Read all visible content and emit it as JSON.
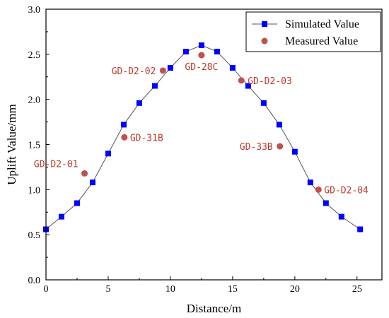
{
  "chart_data": {
    "type": "line",
    "xlabel": "Distance/m",
    "ylabel": "Uplift Value/mm",
    "xlim": [
      0,
      27
    ],
    "ylim": [
      0,
      3.0
    ],
    "x_ticks": [
      "0",
      "5",
      "10",
      "15",
      "20",
      "25"
    ],
    "y_ticks": [
      "0.0",
      "0.5",
      "1.0",
      "1.5",
      "2.0",
      "2.5",
      "3.0"
    ],
    "grid": false,
    "legend_position": "top-right",
    "series": [
      {
        "name": "Simulated Value",
        "style": "line-with-square-markers",
        "color": "#0000ff",
        "line_color": "#555555",
        "x": [
          0,
          1.25,
          2.5,
          3.75,
          5,
          6.25,
          7.5,
          8.75,
          10,
          11.25,
          12.5,
          13.75,
          15,
          16.25,
          17.5,
          18.75,
          20,
          21.25,
          22.5,
          23.75,
          25.25
        ],
        "y": [
          0.56,
          0.7,
          0.85,
          1.08,
          1.4,
          1.72,
          1.96,
          2.15,
          2.35,
          2.53,
          2.6,
          2.53,
          2.35,
          2.15,
          1.96,
          1.72,
          1.42,
          1.08,
          0.85,
          0.7,
          0.56
        ]
      },
      {
        "name": "Measured Value",
        "style": "circle-markers",
        "color": "#c0504d",
        "points": [
          {
            "label": "GD-D2-01",
            "x": 3.1,
            "y": 1.18
          },
          {
            "label": "GD-31B",
            "x": 6.3,
            "y": 1.58
          },
          {
            "label": "GD-D2-02",
            "x": 9.4,
            "y": 2.32
          },
          {
            "label": "GD-28C",
            "x": 12.5,
            "y": 2.49
          },
          {
            "label": "GD-D2-03",
            "x": 15.7,
            "y": 2.21
          },
          {
            "label": "GD-33B",
            "x": 18.8,
            "y": 1.48
          },
          {
            "label": "GD-D2-04",
            "x": 21.9,
            "y": 1.0
          }
        ]
      }
    ]
  }
}
